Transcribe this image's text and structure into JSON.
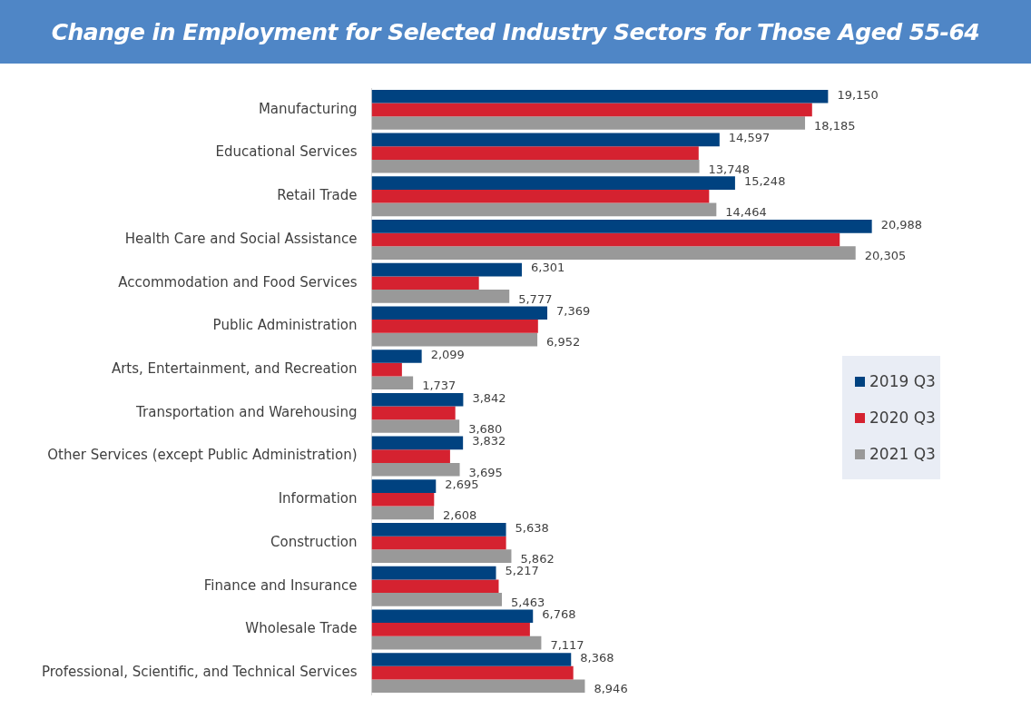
{
  "chart_data": {
    "type": "bar",
    "orientation": "horizontal",
    "title": "Change in Employment for Selected Industry Sectors for Those Aged 55-64",
    "categories": [
      "Manufacturing",
      "Educational Services",
      "Retail Trade",
      "Health Care and Social Assistance",
      "Accommodation and Food Services",
      "Public Administration",
      "Arts, Entertainment, and Recreation",
      "Transportation and Warehousing",
      "Other Services (except Public Administration)",
      "Information",
      "Construction",
      "Finance and Insurance",
      "Wholesale Trade",
      "Professional, Scientific, and Technical Services"
    ],
    "series": [
      {
        "name": "2019 Q3",
        "color": "#004280",
        "values": [
          19150,
          14597,
          15248,
          20988,
          6301,
          7369,
          2099,
          3842,
          3832,
          2695,
          5638,
          5217,
          6768,
          8368
        ],
        "value_labels": [
          "19,150",
          "14,597",
          "15,248",
          "20,988",
          "6,301",
          "7,369",
          "2,099",
          "3,842",
          "3,832",
          "2,695",
          "5,638",
          "5,217",
          "6,768",
          "8,368"
        ]
      },
      {
        "name": "2020 Q3",
        "color": "#d52230",
        "values": [
          18480,
          13720,
          14160,
          19640,
          4500,
          6980,
          1270,
          3510,
          3290,
          2620,
          5640,
          5330,
          6640,
          8460
        ]
      },
      {
        "name": "2021 Q3",
        "color": "#999999",
        "values": [
          18185,
          13748,
          14464,
          20305,
          5777,
          6952,
          1737,
          3680,
          3695,
          2608,
          5862,
          5463,
          7117,
          8946
        ],
        "value_labels": [
          "18,185",
          "13,748",
          "14,464",
          "20,305",
          "5,777",
          "6,952",
          "1,737",
          "3,680",
          "3,695",
          "2,608",
          "5,862",
          "5,463",
          "7,117",
          "8,946"
        ]
      }
    ],
    "legend": "right"
  }
}
